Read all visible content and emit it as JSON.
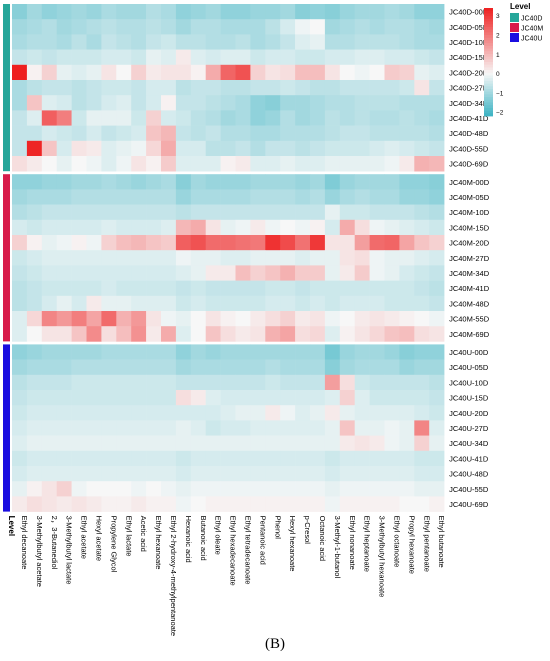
{
  "caption": "(B)",
  "chart_data": {
    "type": "heatmap",
    "color_scale": {
      "low": "#3bb3c3",
      "mid": "#f7f7f7",
      "high": "#ee1f1f",
      "range": [
        -2.2,
        3.4
      ],
      "ticks": [
        "3",
        "2",
        "1",
        "0",
        "−1",
        "−2"
      ],
      "tick_values": [
        3,
        2,
        1,
        0,
        -1,
        -2
      ]
    },
    "legend": {
      "title": "Level",
      "entries": [
        {
          "name": "JC40D",
          "color": "#26a69a"
        },
        {
          "name": "JC40M",
          "color": "#d81b4a"
        },
        {
          "name": "JC40U",
          "color": "#1a0de0"
        }
      ]
    },
    "annotation_label": "Level",
    "groups": [
      {
        "name": "JC40D",
        "color": "#26a69a",
        "rows": 11
      },
      {
        "name": "JC40M",
        "color": "#d81b4a",
        "rows": 11
      },
      {
        "name": "JC40U",
        "color": "#1a0de0",
        "rows": 11
      }
    ],
    "rows": [
      "JC40D-00D",
      "JC40D-05D",
      "JC40D-10D",
      "JC40D-15D",
      "JC40D-20D",
      "JC40D-27D",
      "JC40D-34D",
      "JC40D-41D",
      "JC40D-48D",
      "JC40D-55D",
      "JC40D-69D",
      "JC40M-00D",
      "JC40M-05D",
      "JC40M-10D",
      "JC40M-15D",
      "JC40M-20D",
      "JC40M-27D",
      "JC40M-34D",
      "JC40M-41D",
      "JC40M-48D",
      "JC40M-55D",
      "JC40M-69D",
      "JC40U-00D",
      "JC40U-05D",
      "JC40U-10D",
      "JC40U-15D",
      "JC40U-20D",
      "JC40U-27D",
      "JC40U-34D",
      "JC40U-41D",
      "JC40U-48D",
      "JC40U-55D",
      "JC40U-69D"
    ],
    "columns": [
      "Ethyl decanoate",
      "3-Methylbutyl acetate",
      "2，3-Butanediol",
      "3-Methylbutyl lactate",
      "Ethyl acetate",
      "Hexyl acetate",
      "Propylene Glycol",
      "Ethyl lactate",
      "Acetic acid",
      "Ethyl hexanoate",
      "Ethyl 2-hydroxy-4-methylpentanoate",
      "Hexanoic acid",
      "Butanoic acid",
      "Ethyl oleate",
      "Ethyl hexadecanoate",
      "Ethyl tetradecanoate",
      "Pentanoic acid",
      "Phenol",
      "Hexyl hexanoate",
      "p-Cresol",
      "Octanoic acid",
      "3-Methyl-1-butanol",
      "Ethyl nonanoate",
      "Ethyl heptanoate",
      "3-Methylbutyl hexanoate",
      "Ethyl octanoate",
      "Propyl hexanoate",
      "Ethyl pentanoate",
      "Ethyl butanoate"
    ],
    "values": [
      [
        -1.3,
        -1.0,
        -1.2,
        -1.1,
        -1.0,
        -1.1,
        -0.9,
        -1.0,
        -1.0,
        -0.8,
        -0.9,
        -1.2,
        -1.1,
        -1.0,
        -1.2,
        -1.2,
        -1.1,
        -1.1,
        -1.0,
        -1.3,
        -1.2,
        -1.3,
        -1.1,
        -1.0,
        -1.0,
        -0.9,
        -1.0,
        -1.2,
        -1.2
      ],
      [
        -1.0,
        -0.9,
        -0.8,
        -1.0,
        -0.9,
        -0.8,
        -0.7,
        -0.8,
        -0.8,
        -0.7,
        -0.8,
        -1.0,
        -0.8,
        -0.8,
        -0.9,
        -0.9,
        -0.9,
        -0.7,
        -0.4,
        -0.1,
        0.0,
        -1.0,
        -0.9,
        -0.8,
        -0.9,
        -0.8,
        -0.8,
        -0.9,
        -1.0
      ],
      [
        -0.9,
        -0.8,
        -0.8,
        -0.9,
        -0.7,
        -0.9,
        -0.6,
        -0.7,
        -0.8,
        -0.6,
        -0.5,
        -0.7,
        -0.7,
        -0.8,
        -0.8,
        -0.7,
        -0.9,
        -0.8,
        -0.6,
        -0.3,
        -0.2,
        -0.8,
        -0.8,
        -0.7,
        -0.7,
        -0.7,
        -0.8,
        -0.9,
        -0.9
      ],
      [
        -0.6,
        -0.5,
        -0.6,
        -0.5,
        -0.5,
        -0.5,
        -0.4,
        -0.4,
        -0.5,
        -0.2,
        -0.3,
        0.2,
        -0.3,
        -0.4,
        -0.3,
        -0.3,
        -0.5,
        -0.4,
        -0.4,
        -0.5,
        -0.5,
        -0.4,
        -0.4,
        -0.3,
        -0.3,
        -0.4,
        -0.4,
        -0.5,
        -0.6
      ],
      [
        3.4,
        0.1,
        0.6,
        -0.2,
        -0.3,
        -0.2,
        0.3,
        0.0,
        0.6,
        0.2,
        0.3,
        0.3,
        0.1,
        1.2,
        2.3,
        2.6,
        0.6,
        0.3,
        0.4,
        0.9,
        0.9,
        0.3,
        0.0,
        -0.1,
        0.0,
        0.7,
        0.6,
        -0.2,
        -0.3
      ],
      [
        -0.9,
        -0.7,
        -0.6,
        -0.6,
        -0.7,
        -0.6,
        -0.5,
        -0.5,
        -0.6,
        -0.4,
        -0.4,
        -0.7,
        -0.6,
        -0.6,
        -0.7,
        -0.7,
        -0.6,
        -0.6,
        -0.5,
        -0.6,
        -0.7,
        -0.7,
        -0.6,
        -0.6,
        -0.6,
        -0.6,
        -0.5,
        0.3,
        -0.6
      ],
      [
        -0.9,
        0.8,
        -0.3,
        -0.4,
        -0.7,
        -0.6,
        -0.4,
        -0.3,
        -0.6,
        -0.4,
        0.1,
        -0.6,
        -0.6,
        -0.7,
        -0.8,
        -0.9,
        -1.2,
        -1.3,
        -1.0,
        -1.0,
        -0.9,
        -0.8,
        -0.8,
        -0.7,
        -0.7,
        -0.7,
        -0.8,
        -0.8,
        -0.8
      ],
      [
        -0.6,
        -0.3,
        2.4,
        1.9,
        -0.5,
        -0.2,
        -0.2,
        -0.2,
        -0.5,
        0.6,
        -0.4,
        -0.5,
        -0.7,
        -0.8,
        -1.0,
        -0.9,
        -1.2,
        -1.1,
        -0.8,
        -1.0,
        -0.9,
        -0.7,
        -0.8,
        -0.7,
        -0.8,
        -0.8,
        -0.7,
        -0.8,
        -0.9
      ],
      [
        -0.6,
        -0.6,
        -0.4,
        -0.5,
        -0.6,
        -0.4,
        -0.6,
        -0.5,
        -0.4,
        0.8,
        1.0,
        -0.6,
        -0.7,
        -0.6,
        -0.8,
        -0.8,
        -0.9,
        -0.9,
        -0.8,
        -0.8,
        -0.8,
        -0.7,
        -0.6,
        -0.6,
        -0.7,
        -0.7,
        -0.7,
        -0.7,
        -0.8
      ],
      [
        -0.6,
        3.3,
        0.8,
        -0.4,
        0.3,
        0.2,
        -0.3,
        -0.2,
        -0.1,
        0.5,
        1.2,
        -0.4,
        -0.4,
        -0.7,
        -0.7,
        -0.6,
        -0.8,
        -0.6,
        -0.6,
        -0.7,
        -0.6,
        -0.5,
        -0.5,
        -0.5,
        -0.4,
        -0.3,
        -0.4,
        -0.5,
        -0.6
      ],
      [
        0.4,
        0.2,
        0.0,
        -0.2,
        0.0,
        -0.1,
        -0.3,
        -0.1,
        0.3,
        0.1,
        0.7,
        -0.3,
        -0.3,
        -0.3,
        0.1,
        0.2,
        -0.3,
        -0.3,
        -0.2,
        -0.3,
        -0.3,
        -0.2,
        -0.2,
        -0.2,
        -0.2,
        -0.1,
        0.2,
        1.1,
        1.0
      ],
      [
        -1.2,
        -1.2,
        -1.1,
        -1.1,
        -1.0,
        -1.0,
        -0.9,
        -1.0,
        -1.1,
        -1.0,
        -0.9,
        -1.3,
        -1.0,
        -1.1,
        -1.1,
        -1.1,
        -1.0,
        -1.0,
        -1.0,
        -1.1,
        -1.0,
        -1.4,
        -1.1,
        -1.0,
        -1.0,
        -1.0,
        -1.2,
        -1.2,
        -1.3
      ],
      [
        -1.0,
        -0.9,
        -0.9,
        -0.9,
        -0.8,
        -0.8,
        -0.8,
        -0.8,
        -0.8,
        -0.8,
        -0.8,
        -1.1,
        -0.9,
        -0.9,
        -0.9,
        -0.9,
        -0.8,
        -0.8,
        -0.8,
        -0.9,
        -0.8,
        -1.1,
        -0.9,
        -0.8,
        -0.9,
        -0.9,
        -1.1,
        -1.1,
        -1.2
      ],
      [
        -0.8,
        -0.7,
        -0.6,
        -0.6,
        -0.6,
        -0.6,
        -0.6,
        -0.6,
        -0.6,
        -0.6,
        -0.6,
        -0.7,
        -0.6,
        -0.6,
        -0.6,
        -0.6,
        -0.6,
        -0.6,
        -0.6,
        -0.6,
        -0.6,
        -0.2,
        -0.5,
        -0.5,
        -0.6,
        -0.6,
        -0.6,
        -0.7,
        -0.8
      ],
      [
        -0.4,
        -0.5,
        -0.4,
        -0.4,
        -0.4,
        -0.4,
        -0.3,
        -0.4,
        -0.4,
        -0.4,
        -0.3,
        1.0,
        1.2,
        0.3,
        -0.2,
        -0.1,
        0.2,
        -0.1,
        0.0,
        -0.1,
        0.1,
        -0.4,
        1.2,
        0.4,
        -0.1,
        -0.2,
        -0.3,
        -0.4,
        -0.5
      ],
      [
        0.6,
        0.1,
        -0.2,
        -0.1,
        0.1,
        -0.1,
        0.6,
        0.9,
        1.0,
        0.8,
        0.7,
        2.4,
        2.6,
        2.2,
        2.2,
        2.1,
        2.0,
        3.1,
        2.7,
        2.1,
        3.0,
        0.3,
        0.3,
        1.4,
        2.2,
        2.3,
        1.3,
        0.8,
        0.6
      ],
      [
        -0.5,
        -0.4,
        -0.3,
        -0.3,
        -0.3,
        -0.3,
        -0.3,
        -0.3,
        -0.3,
        -0.3,
        -0.3,
        -0.1,
        -0.2,
        -0.2,
        -0.3,
        -0.3,
        -0.2,
        -0.2,
        -0.2,
        -0.3,
        -0.2,
        -0.2,
        0.3,
        0.4,
        -0.1,
        -0.2,
        -0.2,
        -0.3,
        -0.4
      ],
      [
        -0.6,
        -0.5,
        -0.4,
        -0.4,
        -0.4,
        -0.4,
        -0.4,
        -0.4,
        -0.4,
        -0.4,
        -0.4,
        -0.3,
        -0.2,
        0.2,
        0.2,
        0.9,
        0.6,
        0.8,
        1.1,
        0.7,
        0.7,
        -0.2,
        0.2,
        0.7,
        -0.1,
        -0.2,
        -0.4,
        -0.5,
        -0.6
      ],
      [
        -0.7,
        -0.6,
        -0.5,
        -0.5,
        -0.5,
        -0.5,
        -0.4,
        -0.5,
        -0.5,
        -0.5,
        -0.5,
        -0.6,
        -0.5,
        -0.6,
        -0.6,
        -0.6,
        -0.6,
        -0.5,
        -0.5,
        -0.6,
        -0.5,
        -0.5,
        -0.5,
        -0.5,
        -0.5,
        -0.5,
        -0.5,
        -0.6,
        -0.7
      ],
      [
        -0.7,
        -0.6,
        -0.4,
        -0.2,
        -0.4,
        0.2,
        -0.2,
        -0.2,
        -0.3,
        -0.3,
        -0.3,
        -0.5,
        -0.4,
        -0.5,
        -0.5,
        -0.5,
        -0.5,
        -0.4,
        -0.4,
        -0.5,
        -0.4,
        -0.5,
        -0.4,
        -0.4,
        -0.4,
        -0.5,
        -0.5,
        -0.5,
        -0.6
      ],
      [
        -0.3,
        0.5,
        1.8,
        1.5,
        1.9,
        1.3,
        2.2,
        1.1,
        1.5,
        0.3,
        -0.1,
        -0.2,
        0.0,
        0.3,
        0.1,
        0.0,
        0.2,
        0.4,
        0.6,
        0.2,
        0.3,
        -0.1,
        0.0,
        0.2,
        0.3,
        0.2,
        0.1,
        0.0,
        -0.1
      ],
      [
        -0.3,
        0.0,
        0.3,
        0.3,
        0.8,
        1.7,
        0.4,
        0.9,
        1.6,
        0.2,
        1.2,
        -0.3,
        0.0,
        0.8,
        0.4,
        0.2,
        0.3,
        1.1,
        1.3,
        0.4,
        0.5,
        -0.3,
        0.1,
        0.3,
        0.5,
        0.8,
        0.9,
        0.4,
        0.3
      ],
      [
        -1.2,
        -1.1,
        -1.0,
        -1.0,
        -1.0,
        -1.0,
        -0.9,
        -0.9,
        -0.9,
        -0.9,
        -0.9,
        -1.2,
        -1.0,
        -1.1,
        -1.0,
        -1.0,
        -1.0,
        -1.0,
        -1.0,
        -1.0,
        -1.0,
        -1.5,
        -1.1,
        -1.0,
        -1.0,
        -1.1,
        -1.3,
        -1.2,
        -1.2
      ],
      [
        -1.0,
        -0.9,
        -0.9,
        -0.9,
        -0.8,
        -0.8,
        -0.8,
        -0.8,
        -0.8,
        -0.8,
        -0.8,
        -1.0,
        -0.9,
        -0.9,
        -0.9,
        -0.9,
        -0.9,
        -0.8,
        -0.9,
        -0.9,
        -0.9,
        -1.3,
        -1.0,
        -0.9,
        -0.9,
        -0.9,
        -1.1,
        -1.0,
        -1.0
      ],
      [
        -0.7,
        -0.6,
        -0.6,
        -0.6,
        -0.5,
        -0.5,
        -0.5,
        -0.5,
        -0.5,
        -0.5,
        -0.5,
        -0.6,
        -0.6,
        -0.6,
        -0.6,
        -0.6,
        -0.6,
        -0.5,
        -0.6,
        -0.6,
        -0.6,
        1.4,
        0.4,
        -0.5,
        -0.6,
        -0.6,
        -0.6,
        -0.6,
        -0.7
      ],
      [
        -0.6,
        -0.5,
        -0.5,
        -0.5,
        -0.5,
        -0.5,
        -0.5,
        -0.5,
        -0.5,
        -0.5,
        -0.5,
        0.4,
        0.2,
        -0.3,
        -0.4,
        -0.4,
        -0.4,
        -0.4,
        -0.4,
        -0.4,
        -0.4,
        -0.3,
        0.6,
        -0.3,
        -0.5,
        -0.5,
        -0.5,
        -0.5,
        -0.6
      ],
      [
        -0.5,
        -0.4,
        -0.4,
        -0.4,
        -0.4,
        -0.4,
        -0.4,
        -0.4,
        -0.4,
        -0.4,
        -0.4,
        -0.4,
        -0.4,
        -0.4,
        -0.3,
        -0.2,
        -0.2,
        0.2,
        -0.1,
        -0.3,
        -0.2,
        0.2,
        -0.2,
        -0.3,
        -0.3,
        -0.3,
        -0.3,
        -0.4,
        -0.5
      ],
      [
        -0.4,
        -0.3,
        -0.3,
        -0.3,
        -0.3,
        -0.3,
        -0.3,
        -0.3,
        -0.3,
        -0.3,
        -0.3,
        -0.2,
        -0.3,
        -0.5,
        -0.4,
        -0.4,
        -0.3,
        -0.3,
        -0.3,
        -0.3,
        -0.3,
        -0.2,
        0.8,
        -0.2,
        -0.2,
        -0.1,
        -0.2,
        1.8,
        -0.3
      ],
      [
        -0.3,
        -0.2,
        -0.2,
        -0.2,
        -0.2,
        -0.2,
        -0.2,
        -0.2,
        -0.2,
        -0.2,
        -0.2,
        -0.2,
        -0.2,
        -0.2,
        -0.2,
        -0.2,
        -0.2,
        -0.2,
        -0.2,
        -0.2,
        -0.2,
        -0.2,
        0.2,
        0.3,
        0.2,
        -0.1,
        -0.2,
        0.6,
        -0.2
      ],
      [
        -0.5,
        -0.4,
        -0.4,
        -0.4,
        -0.4,
        -0.4,
        -0.4,
        -0.4,
        -0.4,
        -0.4,
        -0.4,
        -0.5,
        -0.4,
        -0.4,
        -0.4,
        -0.4,
        -0.4,
        -0.4,
        -0.4,
        -0.4,
        -0.4,
        -0.5,
        -0.4,
        -0.4,
        -0.4,
        -0.4,
        -0.4,
        -0.5,
        -0.5
      ],
      [
        -0.4,
        -0.3,
        -0.3,
        -0.3,
        -0.3,
        -0.3,
        -0.3,
        -0.3,
        -0.3,
        -0.3,
        -0.3,
        -0.4,
        -0.3,
        -0.3,
        -0.3,
        -0.3,
        -0.3,
        -0.3,
        -0.3,
        -0.3,
        -0.3,
        -0.4,
        -0.3,
        -0.3,
        -0.3,
        -0.3,
        -0.3,
        -0.4,
        -0.4
      ],
      [
        -0.2,
        0.1,
        0.3,
        0.6,
        -0.1,
        0.0,
        0.0,
        0.0,
        -0.1,
        0.0,
        -0.1,
        -0.2,
        -0.1,
        -0.1,
        -0.1,
        -0.1,
        -0.1,
        -0.1,
        -0.1,
        -0.1,
        -0.1,
        -0.2,
        -0.1,
        -0.1,
        -0.1,
        -0.1,
        -0.1,
        -0.2,
        -0.2
      ],
      [
        0.2,
        0.4,
        0.3,
        0.2,
        0.3,
        0.2,
        0.1,
        0.1,
        0.2,
        0.1,
        0.1,
        -0.1,
        0.0,
        0.1,
        0.1,
        0.1,
        0.1,
        0.1,
        0.1,
        0.1,
        0.1,
        -0.1,
        0.1,
        0.1,
        0.1,
        0.1,
        0.0,
        0.0,
        0.1
      ]
    ]
  }
}
